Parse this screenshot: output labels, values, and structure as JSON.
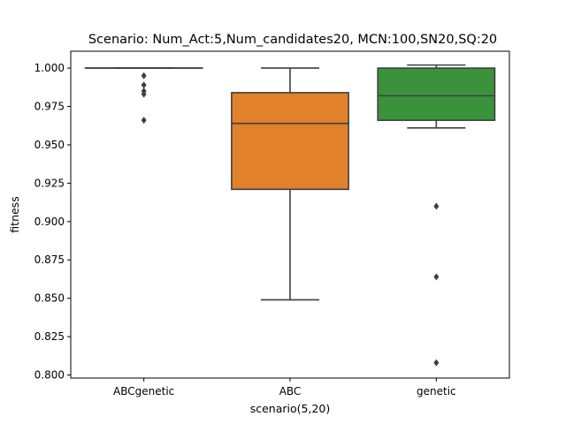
{
  "chart_data": {
    "type": "box",
    "title": "Scenario: Num_Act:5,Num_candidates20, MCN:100,SN20,SQ:20",
    "xlabel": "scenario(5,20)",
    "ylabel": "fitness",
    "ylim": [
      0.798,
      1.011
    ],
    "yticks": [
      0.8,
      0.825,
      0.85,
      0.875,
      0.9,
      0.925,
      0.95,
      0.975,
      1.0
    ],
    "ytick_labels": [
      "0.800",
      "0.825",
      "0.850",
      "0.875",
      "0.900",
      "0.925",
      "0.950",
      "0.975",
      "1.000"
    ],
    "grid": false,
    "categories": [
      "ABCgenetic",
      "ABC",
      "genetic"
    ],
    "boxes": [
      {
        "category": "ABCgenetic",
        "color": "#3a75af",
        "q1": 1.0,
        "median": 1.0,
        "q3": 1.0,
        "whisker_low": 1.0,
        "whisker_high": 1.0,
        "outliers": [
          0.995,
          0.989,
          0.985,
          0.983,
          0.966
        ]
      },
      {
        "category": "ABC",
        "color": "#e1812b",
        "q1": 0.921,
        "median": 0.964,
        "q3": 0.984,
        "whisker_low": 0.849,
        "whisker_high": 1.0,
        "outliers": []
      },
      {
        "category": "genetic",
        "color": "#3a923a",
        "q1": 0.966,
        "median": 0.982,
        "q3": 1.0,
        "whisker_low": 0.961,
        "whisker_high": 1.002,
        "outliers": [
          0.91,
          0.864,
          0.808
        ]
      }
    ]
  }
}
